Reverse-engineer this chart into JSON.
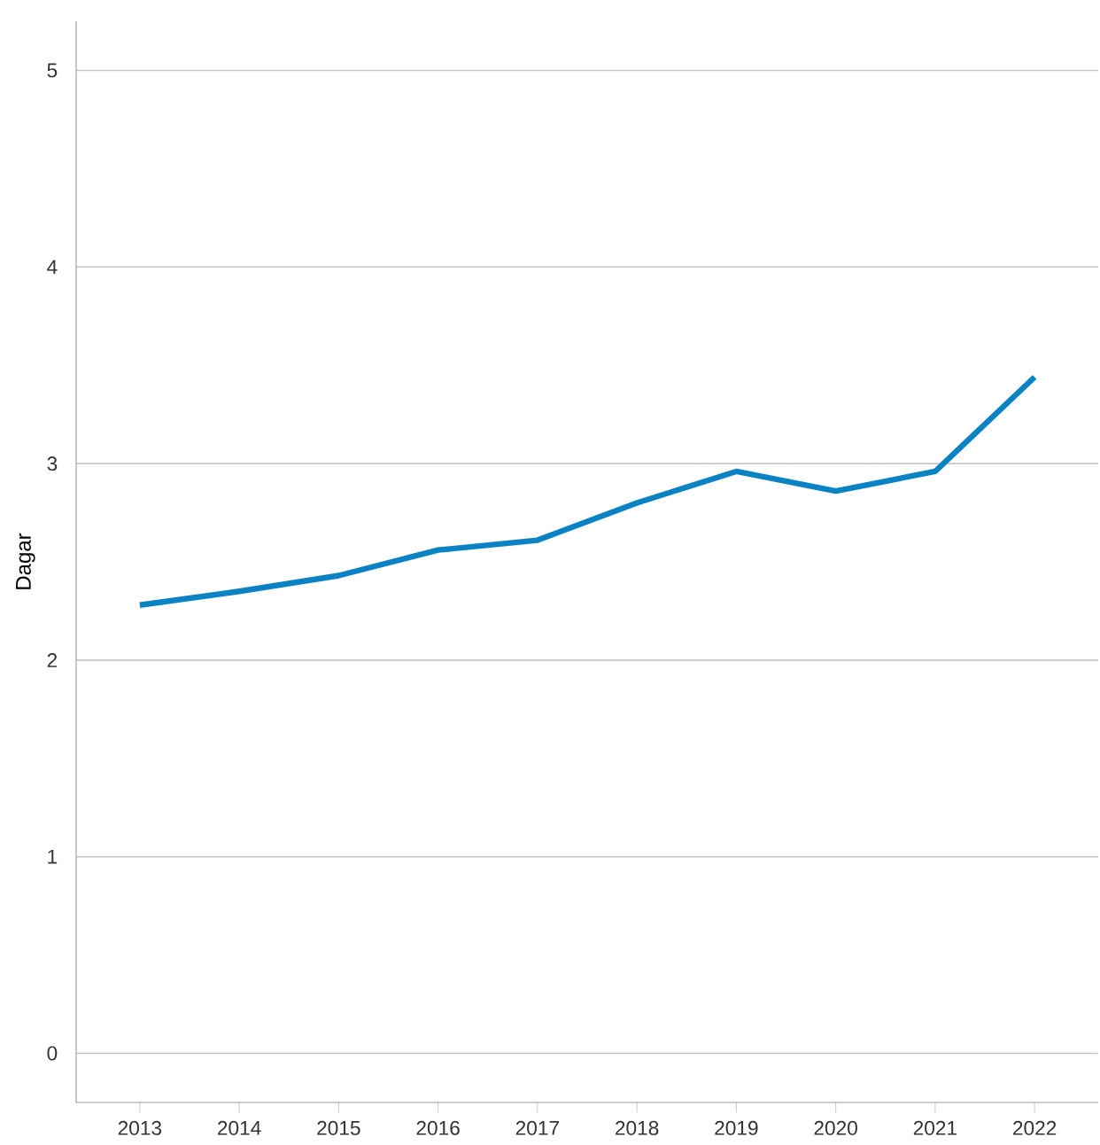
{
  "chart_data": {
    "type": "line",
    "ylabel": "Dagar",
    "categories": [
      "2013",
      "2014",
      "2015",
      "2016",
      "2017",
      "2018",
      "2019",
      "2020",
      "2021",
      "2022"
    ],
    "series": [
      {
        "color": "#0a82c4",
        "values": [
          2.28,
          2.35,
          2.43,
          2.56,
          2.61,
          2.8,
          2.96,
          2.86,
          2.96,
          3.44
        ]
      }
    ],
    "ylim": [
      -0.25,
      5.25
    ],
    "yticks": [
      0,
      1,
      2,
      3,
      4,
      5
    ],
    "grid": "y",
    "marker": "none",
    "line_style": "solid"
  }
}
